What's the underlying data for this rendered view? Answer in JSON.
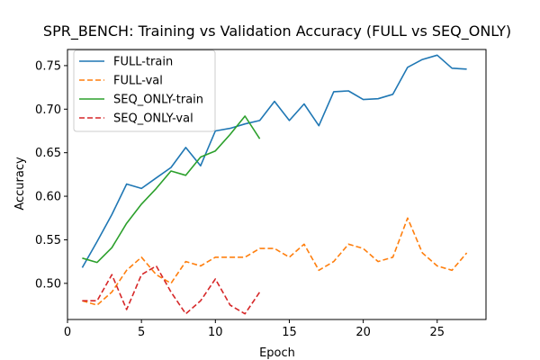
{
  "chart_data": {
    "type": "line",
    "title": "SPR_BENCH: Training vs Validation Accuracy (FULL vs SEQ_ONLY)",
    "xlabel": "Epoch",
    "ylabel": "Accuracy",
    "xlim": [
      0,
      28.3
    ],
    "ylim": [
      0.4585,
      0.7685
    ],
    "xticks": [
      0,
      5,
      10,
      15,
      20,
      25
    ],
    "yticks": [
      0.5,
      0.55,
      0.6,
      0.65,
      0.7,
      0.75
    ],
    "ytick_labels": [
      "0.50",
      "0.55",
      "0.60",
      "0.65",
      "0.70",
      "0.75"
    ],
    "grid": false,
    "legend_position": "upper-left",
    "series": [
      {
        "name": "FULL-train",
        "color": "#1f77b4",
        "dashed": false,
        "x": [
          1,
          2,
          3,
          4,
          5,
          6,
          7,
          8,
          9,
          10,
          11,
          12,
          13,
          14,
          15,
          16,
          17,
          18,
          19,
          20,
          21,
          22,
          23,
          24,
          25,
          26,
          27
        ],
        "values": [
          0.518,
          0.548,
          0.579,
          0.614,
          0.609,
          0.621,
          0.633,
          0.656,
          0.635,
          0.675,
          0.678,
          0.683,
          0.687,
          0.709,
          0.687,
          0.706,
          0.681,
          0.72,
          0.721,
          0.711,
          0.712,
          0.717,
          0.748,
          0.757,
          0.762,
          0.747,
          0.746
        ]
      },
      {
        "name": "FULL-val",
        "color": "#ff7f0e",
        "dashed": true,
        "x": [
          1,
          2,
          3,
          4,
          5,
          6,
          7,
          8,
          9,
          10,
          11,
          12,
          13,
          14,
          15,
          16,
          17,
          18,
          19,
          20,
          21,
          22,
          23,
          24,
          25,
          26,
          27
        ],
        "values": [
          0.48,
          0.475,
          0.49,
          0.515,
          0.53,
          0.51,
          0.5,
          0.525,
          0.52,
          0.53,
          0.53,
          0.53,
          0.54,
          0.54,
          0.53,
          0.545,
          0.515,
          0.525,
          0.545,
          0.54,
          0.525,
          0.53,
          0.575,
          0.535,
          0.52,
          0.515,
          0.535
        ]
      },
      {
        "name": "SEQ_ONLY-train",
        "color": "#2ca02c",
        "dashed": false,
        "x": [
          1,
          2,
          3,
          4,
          5,
          6,
          7,
          8,
          9,
          10,
          11,
          12,
          13
        ],
        "values": [
          0.529,
          0.524,
          0.541,
          0.569,
          0.591,
          0.609,
          0.629,
          0.624,
          0.645,
          0.652,
          0.671,
          0.692,
          0.666
        ]
      },
      {
        "name": "SEQ_ONLY-val",
        "color": "#d62728",
        "dashed": true,
        "x": [
          1,
          2,
          3,
          4,
          5,
          6,
          7,
          8,
          9,
          10,
          11,
          12,
          13
        ],
        "values": [
          0.48,
          0.48,
          0.51,
          0.47,
          0.51,
          0.52,
          0.49,
          0.465,
          0.48,
          0.505,
          0.475,
          0.465,
          0.49
        ]
      }
    ]
  }
}
